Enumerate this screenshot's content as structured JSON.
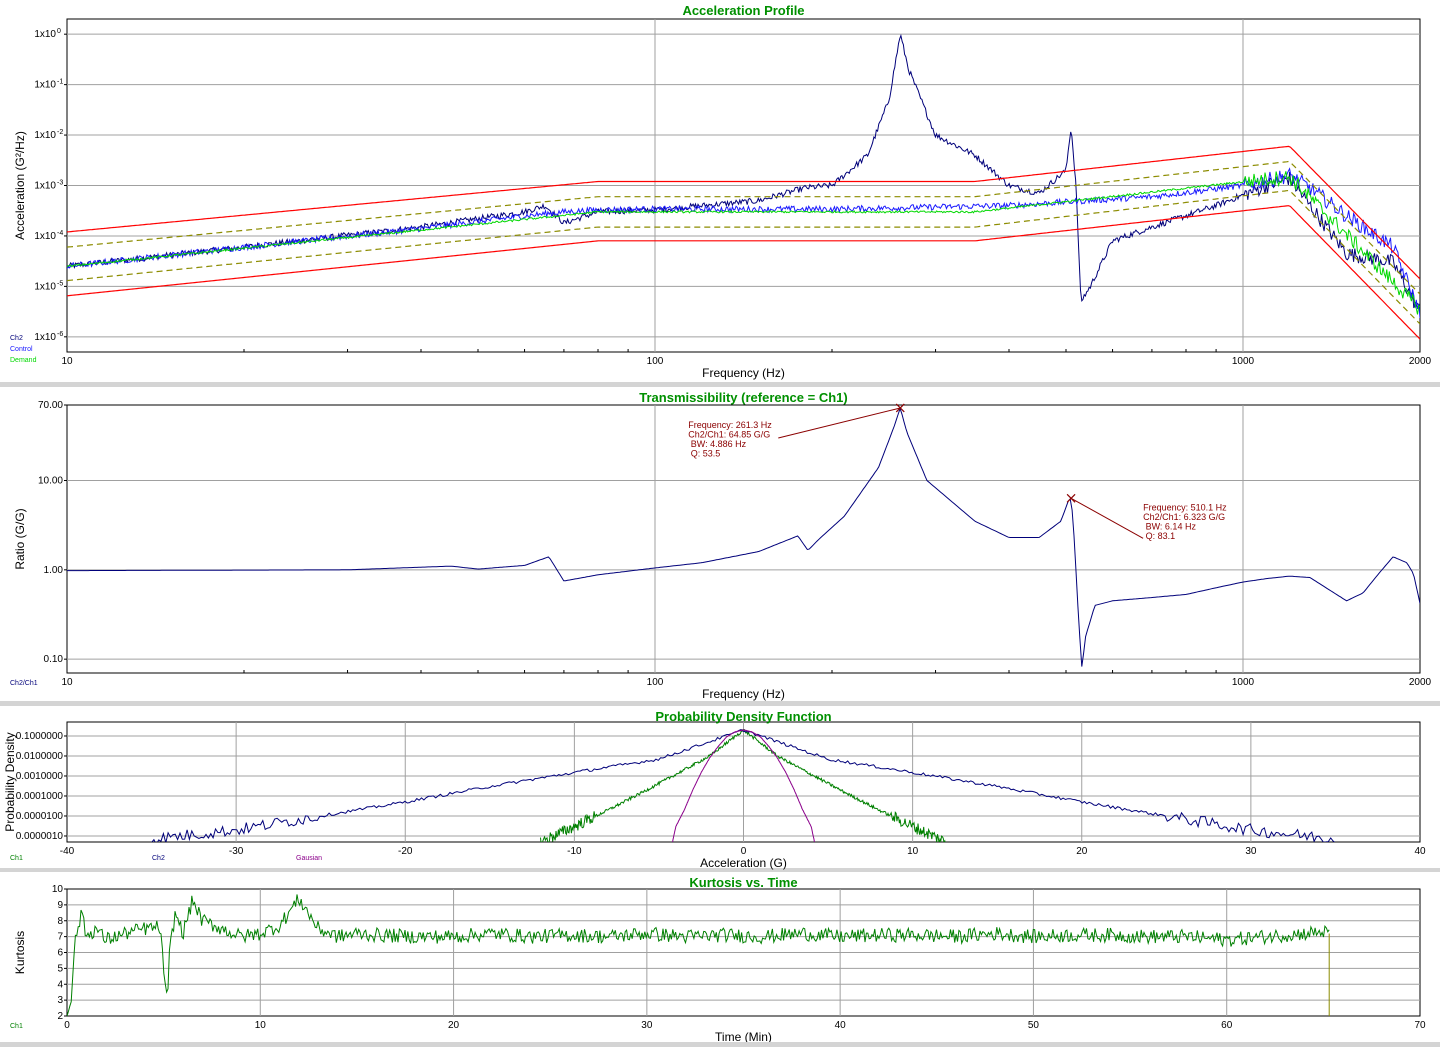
{
  "chart_data": [
    {
      "type": "line",
      "title": "Acceleration Profile",
      "xlabel": "Frequency (Hz)",
      "ylabel": "Acceleration (G²/Hz)",
      "x_scale": "log",
      "y_scale": "log",
      "xlim": [
        10,
        2000
      ],
      "ylim": [
        5e-07,
        2
      ],
      "x_ticks": [
        10,
        100,
        1000,
        2000
      ],
      "x_tick_labels": [
        "10",
        "100",
        "1000",
        "2000"
      ],
      "y_ticks": [
        1e-06,
        1e-05,
        0.0001,
        0.001,
        0.01,
        0.1,
        1
      ],
      "y_tick_labels": [
        "1x10",
        "1x10",
        "1x10",
        "1x10",
        "1x10",
        "1x10",
        "1x10"
      ],
      "y_tick_exponents": [
        "-6",
        "-5",
        "-4",
        "-3",
        "-2",
        "-1",
        "0"
      ],
      "grid": true,
      "legend_position": "bottom-left",
      "series": [
        {
          "name": "Ch2",
          "color": "#00007a",
          "x": [
            10,
            20,
            40,
            60,
            65,
            70,
            80,
            100,
            150,
            180,
            200,
            230,
            250,
            261.3,
            270,
            300,
            350,
            400,
            450,
            500,
            510.1,
            520,
            530,
            550,
            600,
            700,
            900,
            1100,
            1200,
            1300,
            1500,
            1800,
            2000
          ],
          "y": [
            2.5e-05,
            6e-05,
            0.00015,
            0.0003,
            0.0004,
            0.00018,
            0.0003,
            0.00033,
            0.0005,
            0.0009,
            0.001,
            0.004,
            0.05,
            1.0,
            0.2,
            0.01,
            0.004,
            0.001,
            0.0007,
            0.002,
            0.015,
            0.001,
            5e-06,
            1e-05,
            8e-05,
            0.00015,
            0.0004,
            0.001,
            0.0014,
            0.0004,
            4.5e-05,
            3e-05,
            3e-06
          ]
        },
        {
          "name": "Control",
          "color": "#1a1aff",
          "x": [
            10,
            20,
            40,
            60,
            70,
            80,
            100,
            200,
            400,
            700,
            1000,
            1200,
            1300,
            1500,
            1800,
            2000
          ],
          "y": [
            2.5e-05,
            6e-05,
            0.00014,
            0.00025,
            0.0003,
            0.00033,
            0.00034,
            0.00034,
            0.0004,
            0.0006,
            0.001,
            0.0016,
            0.0009,
            0.00025,
            6e-05,
            3e-06
          ]
        },
        {
          "name": "Demand",
          "color": "#00d800",
          "x": [
            10,
            80,
            350,
            1200,
            2000
          ],
          "y": [
            2.5e-05,
            0.0003,
            0.0003,
            0.0015,
            3.5e-06
          ]
        },
        {
          "name": "",
          "color": "#ff0000",
          "x": [
            10,
            80,
            350,
            1200,
            2000
          ],
          "y": [
            0.00012,
            0.0012,
            0.0012,
            0.006,
            1.4e-05
          ]
        },
        {
          "name": "",
          "color": "#ff0000",
          "x": [
            10,
            80,
            350,
            1200,
            2000
          ],
          "y": [
            6.5e-06,
            8e-05,
            8e-05,
            0.0004,
            9e-07
          ]
        },
        {
          "name": "",
          "color": "#8c8c00",
          "x": [
            10,
            80,
            350,
            1200,
            2000
          ],
          "y": [
            6e-05,
            0.0006,
            0.0006,
            0.003,
            7e-06
          ]
        },
        {
          "name": "",
          "color": "#8c8c00",
          "x": [
            10,
            80,
            350,
            1200,
            2000
          ],
          "y": [
            1.3e-05,
            0.00015,
            0.00015,
            0.0008,
            1.8e-06
          ]
        }
      ]
    },
    {
      "type": "line",
      "title": "Transmissibility (reference = Ch1)",
      "xlabel": "Frequency (Hz)",
      "ylabel": "Ratio (G/G)",
      "x_scale": "log",
      "y_scale": "log",
      "xlim": [
        10,
        2000
      ],
      "ylim": [
        0.07,
        70
      ],
      "x_ticks": [
        10,
        100,
        1000,
        2000
      ],
      "x_tick_labels": [
        "10",
        "100",
        "1000",
        "2000"
      ],
      "y_ticks": [
        0.1,
        1,
        10,
        70
      ],
      "y_tick_labels": [
        "0.10",
        "1.00",
        "10.00",
        "70.00"
      ],
      "grid": true,
      "legend_position": "bottom-left",
      "series": [
        {
          "name": "Ch2/Ch1",
          "color": "#00007a",
          "x": [
            10,
            30,
            45,
            50,
            60,
            66,
            70,
            80,
            100,
            120,
            150,
            175,
            182,
            190,
            210,
            240,
            255,
            261.3,
            268,
            290,
            350,
            400,
            450,
            490,
            505,
            510.1,
            515,
            525,
            532,
            540,
            560,
            600,
            700,
            800,
            900,
            1000,
            1100,
            1200,
            1300,
            1400,
            1500,
            1600,
            1700,
            1800,
            1900,
            1950,
            2000
          ],
          "y": [
            0.98,
            1.0,
            1.1,
            1.02,
            1.12,
            1.4,
            0.75,
            0.88,
            1.05,
            1.2,
            1.6,
            2.4,
            1.65,
            2.2,
            4,
            14,
            40,
            64.85,
            35,
            10,
            3.5,
            2.3,
            2.3,
            3.5,
            6,
            6.323,
            3,
            0.3,
            0.08,
            0.18,
            0.4,
            0.45,
            0.49,
            0.53,
            0.63,
            0.73,
            0.8,
            0.85,
            0.82,
            0.6,
            0.45,
            0.55,
            0.9,
            1.4,
            1.2,
            0.9,
            0.42
          ]
        }
      ],
      "annotations": [
        {
          "x": 261.3,
          "y": 64.85,
          "lines": [
            "Frequency: 261.3 Hz",
            "Ch2/Ch1: 64.85 G/G",
            " BW: 4.886 Hz",
            " Q: 53.5"
          ]
        },
        {
          "x": 510.1,
          "y": 6.323,
          "lines": [
            "Frequency: 510.1 Hz",
            "Ch2/Ch1: 6.323 G/G",
            " BW: 6.14 Hz",
            " Q: 83.1"
          ]
        }
      ]
    },
    {
      "type": "line",
      "title": "Probability Density Function",
      "xlabel": "Acceleration (G)",
      "ylabel": "Probability Density",
      "y_scale": "log",
      "xlim": [
        -40,
        40
      ],
      "ylim": [
        5e-07,
        0.5
      ],
      "x_ticks": [
        -40,
        -30,
        -20,
        -10,
        0,
        10,
        20,
        30,
        40
      ],
      "x_tick_labels": [
        "-40",
        "-30",
        "-20",
        "-10",
        "0",
        "10",
        "20",
        "30",
        "40"
      ],
      "y_ticks": [
        1e-06,
        1e-05,
        0.0001,
        0.001,
        0.01,
        0.1
      ],
      "y_tick_labels": [
        "0.0000010",
        "0.0000100",
        "0.0001000",
        "0.0010000",
        "0.0100000",
        "0.1000000"
      ],
      "grid": true,
      "legend_position": "bottom-left",
      "legend_labels": [
        "Ch1",
        "Ch2",
        "Gausian"
      ],
      "series": [
        {
          "name": "Ch1",
          "color": "#008000",
          "x": [
            -12,
            -10,
            -8,
            -6,
            -4,
            -2,
            0,
            2,
            4,
            6,
            8,
            10,
            12
          ],
          "y": [
            5e-07,
            3e-06,
            2e-05,
            0.00015,
            0.0012,
            0.01,
            0.2,
            0.01,
            0.0012,
            0.00015,
            2e-05,
            3e-06,
            5e-07
          ]
        },
        {
          "name": "Ch2",
          "color": "#00007a",
          "x": [
            -35,
            -30,
            -25,
            -20,
            -15,
            -10,
            -5,
            0,
            5,
            10,
            15,
            20,
            25,
            30,
            35
          ],
          "y": [
            7e-07,
            2e-06,
            1e-05,
            5e-05,
            0.0003,
            0.0015,
            0.007,
            0.2,
            0.007,
            0.0015,
            0.0003,
            5e-05,
            1e-05,
            2e-06,
            7e-07
          ]
        },
        {
          "name": "Gausian",
          "color": "#8b008b",
          "x": [
            -4.2,
            -4,
            -3.5,
            -3,
            -2.5,
            -2,
            -1.5,
            -1,
            -0.5,
            0,
            0.5,
            1,
            1.5,
            2,
            2.5,
            3,
            3.5,
            4,
            4.2
          ],
          "y": [
            5e-07,
            3e-06,
            2e-05,
            0.0002,
            0.0015,
            0.008,
            0.03,
            0.09,
            0.16,
            0.2,
            0.16,
            0.09,
            0.03,
            0.008,
            0.0015,
            0.0002,
            2e-05,
            3e-06,
            5e-07
          ]
        }
      ]
    },
    {
      "type": "line",
      "title": "Kurtosis vs. Time",
      "xlabel": "Time (Min)",
      "ylabel": "Kurtosis",
      "xlim": [
        0,
        70
      ],
      "ylim": [
        2,
        10
      ],
      "x_ticks": [
        0,
        10,
        20,
        30,
        40,
        50,
        60,
        70
      ],
      "x_tick_labels": [
        "0",
        "10",
        "20",
        "30",
        "40",
        "50",
        "60",
        "70"
      ],
      "y_ticks": [
        2,
        3,
        4,
        5,
        6,
        7,
        8,
        9,
        10
      ],
      "y_tick_labels": [
        "2",
        "3",
        "4",
        "5",
        "6",
        "7",
        "8",
        "9",
        "10"
      ],
      "grid": true,
      "legend_position": "bottom-left",
      "series": [
        {
          "name": "Ch1",
          "color": "#008000",
          "x": [
            0,
            0.2,
            0.4,
            0.6,
            0.8,
            1,
            1.5,
            2,
            3,
            4,
            4.8,
            5.2,
            5.3,
            5.6,
            6,
            6.5,
            7,
            8,
            9,
            10,
            11,
            12,
            13,
            14,
            15,
            16,
            18,
            20,
            22,
            24,
            26,
            28,
            30,
            32,
            34,
            36,
            38,
            40,
            42,
            44,
            46,
            48,
            50,
            52,
            54,
            56,
            58,
            60,
            62,
            64,
            65,
            65.3
          ],
          "y": [
            2.2,
            3,
            6.5,
            7.8,
            8.5,
            7,
            7.5,
            6.8,
            7.2,
            7.5,
            7.6,
            2.5,
            6,
            8.5,
            7.2,
            9.3,
            8,
            7.5,
            7,
            7.2,
            7.7,
            9.4,
            7.5,
            7,
            7.2,
            7.1,
            7,
            7,
            7.2,
            7,
            7.1,
            7,
            7.2,
            7,
            7.1,
            7,
            7.2,
            7,
            7.1,
            7.1,
            7,
            7.2,
            7,
            7.1,
            7.1,
            7,
            7,
            6.8,
            7,
            7.2,
            7.3,
            7.2
          ]
        },
        {
          "name": "",
          "color": "#8c8c00",
          "x": [
            65.3,
            65.3
          ],
          "y": [
            7.2,
            2
          ]
        }
      ]
    }
  ]
}
